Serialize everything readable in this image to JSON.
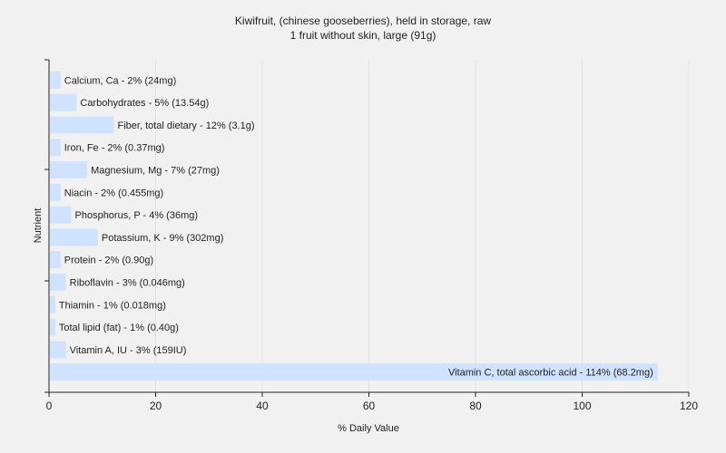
{
  "chart_data": {
    "type": "bar",
    "orientation": "horizontal",
    "title": "Kiwifruit, (chinese gooseberries), held in storage, raw",
    "subtitle": "1 fruit without skin, large (91g)",
    "xlabel": "% Daily Value",
    "ylabel": "Nutrient",
    "xlim": [
      0,
      120
    ],
    "xticks": [
      0,
      20,
      40,
      60,
      80,
      100,
      120
    ],
    "grid": true,
    "bar_color": "#cfe2ff",
    "categories": [
      "Calcium, Ca",
      "Carbohydrates",
      "Fiber, total dietary",
      "Iron, Fe",
      "Magnesium, Mg",
      "Niacin",
      "Phosphorus, P",
      "Potassium, K",
      "Protein",
      "Riboflavin",
      "Thiamin",
      "Total lipid (fat)",
      "Vitamin A, IU",
      "Vitamin C, total ascorbic acid"
    ],
    "values": [
      2,
      5,
      12,
      2,
      7,
      2,
      4,
      9,
      2,
      3,
      1,
      1,
      3,
      114
    ],
    "labels": [
      "Calcium, Ca - 2% (24mg)",
      "Carbohydrates - 5% (13.54g)",
      "Fiber, total dietary - 12% (3.1g)",
      "Iron, Fe - 2% (0.37mg)",
      "Magnesium, Mg - 7% (27mg)",
      "Niacin - 2% (0.455mg)",
      "Phosphorus, P - 4% (36mg)",
      "Potassium, K - 9% (302mg)",
      "Protein - 2% (0.90g)",
      "Riboflavin - 3% (0.046mg)",
      "Thiamin - 1% (0.018mg)",
      "Total lipid (fat) - 1% (0.40g)",
      "Vitamin A, IU - 3% (159IU)",
      "Vitamin C, total ascorbic acid - 114% (68.2mg)"
    ]
  }
}
